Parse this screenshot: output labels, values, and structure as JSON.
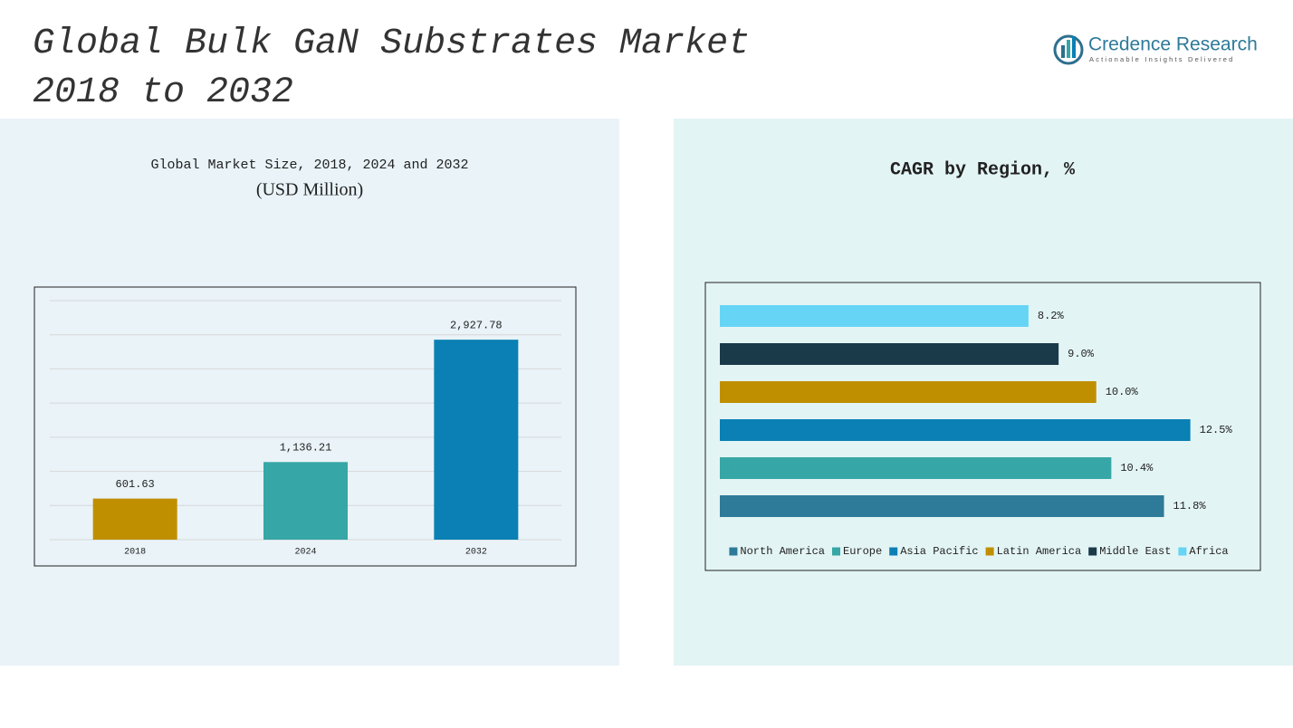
{
  "title": "Global Bulk GaN Substrates Market 2018 to 2032",
  "logo": {
    "name": "Credence Research",
    "tagline": "Actionable Insights Delivered"
  },
  "chart_data": [
    {
      "type": "bar",
      "title": "Global Market Size, 2018, 2024 and 2032",
      "subtitle": "(USD Million)",
      "categories": [
        "2018",
        "2024",
        "2032"
      ],
      "values": [
        601.63,
        1136.21,
        2927.78
      ],
      "value_labels": [
        "601.63",
        "1,136.21",
        "2,927.78"
      ],
      "colors": [
        "#c08f00",
        "#36a6a6",
        "#0a80b4"
      ],
      "ylim": [
        0,
        3500
      ],
      "yticks": [
        0,
        500,
        1000,
        1500,
        2000,
        2500,
        3000,
        3500
      ],
      "grid": true
    },
    {
      "type": "hbar",
      "title": "CAGR by Region, %",
      "categories": [
        "North America",
        "Europe",
        "Asia Pacific",
        "Latin America",
        "Middle East",
        "Africa"
      ],
      "values": [
        11.8,
        10.4,
        12.5,
        10.0,
        9.0,
        8.2
      ],
      "value_labels": [
        "11.8%",
        "10.4%",
        "12.5%",
        "10.0%",
        "9.0%",
        "8.2%"
      ],
      "colors": [
        "#2e7a99",
        "#36a6a6",
        "#0a80b4",
        "#c08f00",
        "#1a3a4a",
        "#66d4f5"
      ],
      "xlim": [
        0,
        14
      ],
      "legend": "bottom"
    }
  ]
}
